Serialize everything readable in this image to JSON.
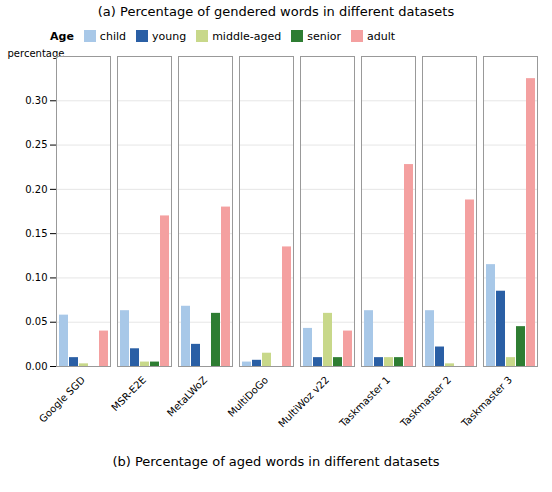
{
  "chart_data": {
    "type": "bar",
    "title": "(a) Percentage of gendered words in different datasets",
    "subtitle": "(b) Percentage of aged words in different datasets",
    "ylabel": "percentage",
    "legend_title": "Age",
    "categories": [
      "Google SGD",
      "MSR-E2E",
      "MetaLWoZ",
      "MultiDoGo",
      "MultiWoz v22",
      "Taskmaster 1",
      "Taskmaster 2",
      "Taskmaster 3"
    ],
    "series": [
      {
        "name": "child",
        "color": "#a8c8e8",
        "values": [
          0.058,
          0.063,
          0.068,
          0.005,
          0.043,
          0.063,
          0.063,
          0.115
        ]
      },
      {
        "name": "young",
        "color": "#2a5fa5",
        "values": [
          0.01,
          0.02,
          0.025,
          0.007,
          0.01,
          0.01,
          0.022,
          0.085
        ]
      },
      {
        "name": "middle-aged",
        "color": "#c8d88a",
        "values": [
          0.003,
          0.005,
          0.0,
          0.015,
          0.06,
          0.01,
          0.003,
          0.01
        ]
      },
      {
        "name": "senior",
        "color": "#2e7d32",
        "values": [
          0.0,
          0.005,
          0.06,
          0.0,
          0.01,
          0.01,
          0.0,
          0.045
        ]
      },
      {
        "name": "adult",
        "color": "#f4a0a0",
        "values": [
          0.04,
          0.17,
          0.18,
          0.135,
          0.04,
          0.228,
          0.188,
          0.325
        ]
      }
    ],
    "ylim": [
      0,
      0.35
    ],
    "yticks": [
      {
        "value": 0,
        "label": "0.00"
      },
      0.05,
      {
        "value": 0.1,
        "label": "0.10"
      },
      0.15,
      {
        "value": 0.2,
        "label": "0.20"
      },
      0.25,
      {
        "value": 0.3,
        "label": "0.30"
      }
    ],
    "grid": true,
    "legend": "upper left"
  }
}
